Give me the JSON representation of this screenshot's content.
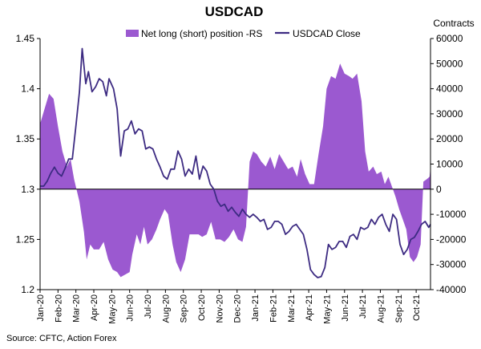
{
  "chart_data": {
    "type": "area+line",
    "title": "USDCAD",
    "right_axis_label": "Contracts",
    "source": "Source: CFTC, Action Forex",
    "left_axis": {
      "min": 1.2,
      "max": 1.45,
      "ticks": [
        "1.2",
        "1.25",
        "1.3",
        "1.35",
        "1.4",
        "1.45"
      ]
    },
    "right_axis": {
      "min": -40000,
      "max": 60000,
      "ticks": [
        "-40000",
        "-30000",
        "-20000",
        "-10000",
        "0",
        "10000",
        "20000",
        "30000",
        "40000",
        "50000",
        "60000"
      ]
    },
    "x_labels": [
      "Jan-20",
      "Feb-20",
      "Mar-20",
      "Apr-20",
      "May-20",
      "Jun-20",
      "Jul-20",
      "Aug-20",
      "Sep-20",
      "Oct-20",
      "Nov-20",
      "Dec-20",
      "Jan-21",
      "Feb-21",
      "Mar-21",
      "Apr-21",
      "May-21",
      "Jun-21",
      "Jul-21",
      "Aug-21",
      "Sep-21",
      "Oct-21"
    ],
    "x_range": [
      0,
      21.8
    ],
    "legend_position": "top",
    "series": [
      {
        "name": "Net long (short) position -RS",
        "kind": "area",
        "axis": "right",
        "color": "#9b59d0",
        "points": [
          [
            0,
            26000
          ],
          [
            0.25,
            32000
          ],
          [
            0.5,
            38000
          ],
          [
            0.75,
            36000
          ],
          [
            1.0,
            25000
          ],
          [
            1.25,
            15000
          ],
          [
            1.5,
            9000
          ],
          [
            1.7,
            12000
          ],
          [
            1.9,
            4000
          ],
          [
            2.2,
            -5000
          ],
          [
            2.45,
            -17000
          ],
          [
            2.6,
            -28000
          ],
          [
            2.8,
            -22000
          ],
          [
            3.0,
            -24000
          ],
          [
            3.3,
            -24000
          ],
          [
            3.55,
            -21000
          ],
          [
            3.8,
            -28000
          ],
          [
            4.05,
            -32000
          ],
          [
            4.3,
            -33000
          ],
          [
            4.5,
            -35000
          ],
          [
            4.75,
            -34000
          ],
          [
            5.0,
            -33000
          ],
          [
            5.15,
            -26000
          ],
          [
            5.4,
            -18000
          ],
          [
            5.6,
            -22000
          ],
          [
            5.8,
            -15000
          ],
          [
            6.0,
            -22000
          ],
          [
            6.25,
            -20000
          ],
          [
            6.5,
            -16000
          ],
          [
            6.7,
            -12000
          ],
          [
            6.95,
            -8000
          ],
          [
            7.15,
            -10000
          ],
          [
            7.4,
            -22000
          ],
          [
            7.6,
            -29000
          ],
          [
            7.85,
            -33000
          ],
          [
            8.1,
            -28000
          ],
          [
            8.35,
            -18000
          ],
          [
            8.6,
            -18000
          ],
          [
            8.85,
            -18000
          ],
          [
            9.05,
            -19000
          ],
          [
            9.3,
            -18000
          ],
          [
            9.55,
            -13000
          ],
          [
            9.8,
            -20000
          ],
          [
            10.05,
            -20000
          ],
          [
            10.3,
            -21000
          ],
          [
            10.55,
            -19000
          ],
          [
            10.8,
            -16000
          ],
          [
            11.05,
            -20000
          ],
          [
            11.3,
            -21000
          ],
          [
            11.5,
            -15000
          ],
          [
            11.7,
            11000
          ],
          [
            11.9,
            15000
          ],
          [
            12.1,
            14000
          ],
          [
            12.35,
            11000
          ],
          [
            12.6,
            9000
          ],
          [
            12.85,
            13000
          ],
          [
            13.1,
            8000
          ],
          [
            13.35,
            14000
          ],
          [
            13.6,
            11000
          ],
          [
            13.85,
            8000
          ],
          [
            14.1,
            9000
          ],
          [
            14.35,
            5000
          ],
          [
            14.55,
            12000
          ],
          [
            14.8,
            6000
          ],
          [
            15.05,
            2000
          ],
          [
            15.3,
            2000
          ],
          [
            15.55,
            14000
          ],
          [
            15.8,
            25000
          ],
          [
            16.0,
            40000
          ],
          [
            16.25,
            45000
          ],
          [
            16.5,
            44000
          ],
          [
            16.75,
            50000
          ],
          [
            17.0,
            46000
          ],
          [
            17.25,
            45000
          ],
          [
            17.45,
            44000
          ],
          [
            17.7,
            46000
          ],
          [
            17.95,
            35000
          ],
          [
            18.15,
            15000
          ],
          [
            18.35,
            7000
          ],
          [
            18.6,
            9000
          ],
          [
            18.8,
            6000
          ],
          [
            19.05,
            7000
          ],
          [
            19.25,
            2000
          ],
          [
            19.45,
            5000
          ],
          [
            19.65,
            1000
          ],
          [
            19.85,
            -3000
          ],
          [
            20.05,
            -8000
          ],
          [
            20.25,
            -12000
          ],
          [
            20.45,
            -16000
          ],
          [
            20.65,
            -27000
          ],
          [
            20.85,
            -29000
          ],
          [
            21.05,
            -27000
          ],
          [
            21.25,
            -22000
          ],
          [
            21.4,
            3000
          ],
          [
            21.6,
            4000
          ],
          [
            21.75,
            5000
          ],
          [
            21.8,
            9000
          ]
        ]
      },
      {
        "name": "USDCAD Close",
        "kind": "line",
        "axis": "left",
        "color": "#3d2b82",
        "points": [
          [
            0,
            1.303
          ],
          [
            0.2,
            1.303
          ],
          [
            0.4,
            1.308
          ],
          [
            0.6,
            1.316
          ],
          [
            0.8,
            1.322
          ],
          [
            1.0,
            1.316
          ],
          [
            1.2,
            1.313
          ],
          [
            1.4,
            1.321
          ],
          [
            1.6,
            1.33
          ],
          [
            1.8,
            1.33
          ],
          [
            2.0,
            1.363
          ],
          [
            2.2,
            1.397
          ],
          [
            2.35,
            1.44
          ],
          [
            2.55,
            1.405
          ],
          [
            2.7,
            1.417
          ],
          [
            2.9,
            1.397
          ],
          [
            3.1,
            1.402
          ],
          [
            3.3,
            1.41
          ],
          [
            3.5,
            1.407
          ],
          [
            3.7,
            1.393
          ],
          [
            3.85,
            1.41
          ],
          [
            4.1,
            1.4
          ],
          [
            4.3,
            1.38
          ],
          [
            4.5,
            1.333
          ],
          [
            4.7,
            1.358
          ],
          [
            4.9,
            1.36
          ],
          [
            5.1,
            1.368
          ],
          [
            5.3,
            1.355
          ],
          [
            5.5,
            1.36
          ],
          [
            5.7,
            1.358
          ],
          [
            5.9,
            1.34
          ],
          [
            6.1,
            1.342
          ],
          [
            6.3,
            1.34
          ],
          [
            6.5,
            1.33
          ],
          [
            6.7,
            1.322
          ],
          [
            6.9,
            1.313
          ],
          [
            7.1,
            1.31
          ],
          [
            7.3,
            1.32
          ],
          [
            7.5,
            1.32
          ],
          [
            7.7,
            1.338
          ],
          [
            7.9,
            1.33
          ],
          [
            8.1,
            1.313
          ],
          [
            8.3,
            1.32
          ],
          [
            8.5,
            1.315
          ],
          [
            8.7,
            1.333
          ],
          [
            8.9,
            1.31
          ],
          [
            9.1,
            1.323
          ],
          [
            9.3,
            1.318
          ],
          [
            9.5,
            1.305
          ],
          [
            9.7,
            1.3
          ],
          [
            9.9,
            1.288
          ],
          [
            10.1,
            1.283
          ],
          [
            10.3,
            1.285
          ],
          [
            10.5,
            1.278
          ],
          [
            10.7,
            1.282
          ],
          [
            10.9,
            1.277
          ],
          [
            11.1,
            1.273
          ],
          [
            11.3,
            1.28
          ],
          [
            11.5,
            1.275
          ],
          [
            11.7,
            1.272
          ],
          [
            11.9,
            1.275
          ],
          [
            12.1,
            1.272
          ],
          [
            12.3,
            1.268
          ],
          [
            12.5,
            1.27
          ],
          [
            12.7,
            1.26
          ],
          [
            12.9,
            1.262
          ],
          [
            13.1,
            1.268
          ],
          [
            13.3,
            1.268
          ],
          [
            13.5,
            1.265
          ],
          [
            13.7,
            1.255
          ],
          [
            13.9,
            1.258
          ],
          [
            14.1,
            1.263
          ],
          [
            14.3,
            1.265
          ],
          [
            14.5,
            1.26
          ],
          [
            14.7,
            1.255
          ],
          [
            14.9,
            1.24
          ],
          [
            15.1,
            1.22
          ],
          [
            15.3,
            1.215
          ],
          [
            15.5,
            1.212
          ],
          [
            15.7,
            1.213
          ],
          [
            15.9,
            1.222
          ],
          [
            16.1,
            1.245
          ],
          [
            16.3,
            1.24
          ],
          [
            16.5,
            1.242
          ],
          [
            16.7,
            1.248
          ],
          [
            16.9,
            1.248
          ],
          [
            17.1,
            1.242
          ],
          [
            17.3,
            1.253
          ],
          [
            17.5,
            1.255
          ],
          [
            17.7,
            1.25
          ],
          [
            17.9,
            1.262
          ],
          [
            18.1,
            1.26
          ],
          [
            18.3,
            1.262
          ],
          [
            18.5,
            1.27
          ],
          [
            18.7,
            1.265
          ],
          [
            18.9,
            1.272
          ],
          [
            19.1,
            1.275
          ],
          [
            19.3,
            1.265
          ],
          [
            19.5,
            1.258
          ],
          [
            19.7,
            1.275
          ],
          [
            19.9,
            1.27
          ],
          [
            20.1,
            1.245
          ],
          [
            20.3,
            1.235
          ],
          [
            20.5,
            1.24
          ],
          [
            20.7,
            1.25
          ],
          [
            20.9,
            1.252
          ],
          [
            21.1,
            1.258
          ],
          [
            21.3,
            1.265
          ],
          [
            21.5,
            1.268
          ],
          [
            21.7,
            1.262
          ],
          [
            21.8,
            1.265
          ]
        ]
      }
    ]
  }
}
